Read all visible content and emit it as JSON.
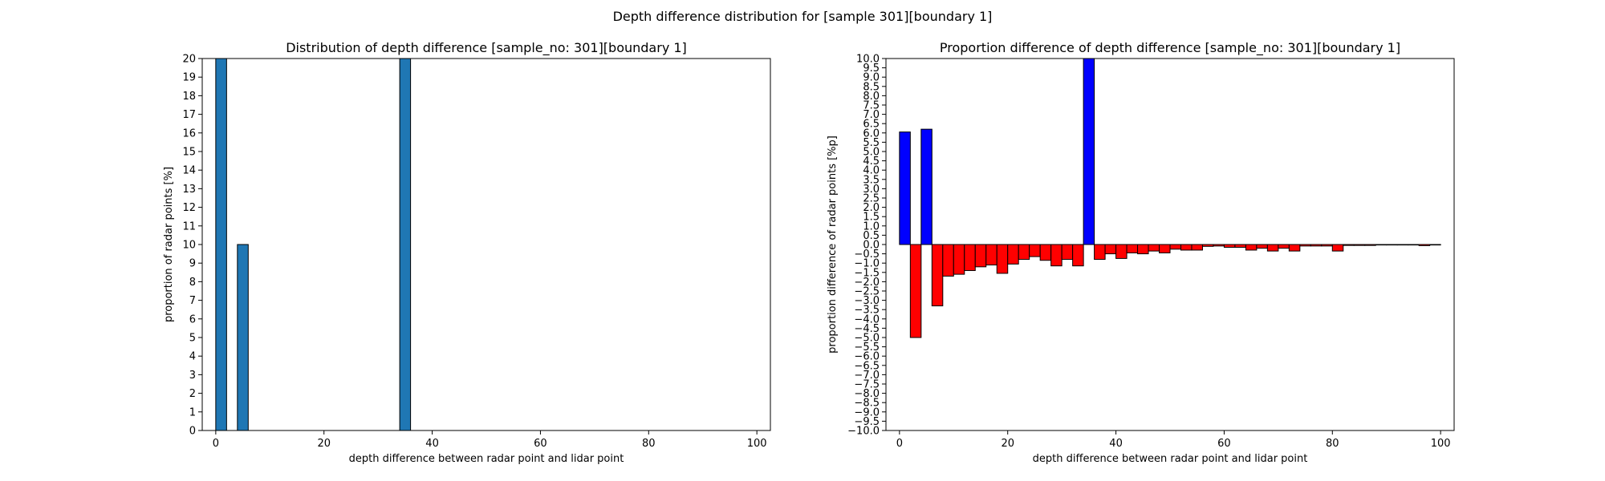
{
  "figure": {
    "suptitle": "Depth difference distribution for [sample 301][boundary 1]"
  },
  "colors": {
    "bar_left": "#1f77b4",
    "positive": "#0000ff",
    "negative": "#ff0000",
    "edge": "#000000"
  },
  "chart_data": [
    {
      "type": "bar",
      "title": "Distribution of depth difference [sample_no: 301][boundary 1]",
      "xlabel": "depth difference between radar point and lidar point",
      "ylabel": "proportion of radar points [%]",
      "xlim": [
        -2.5,
        102.5
      ],
      "ylim": [
        0,
        20
      ],
      "x_ticks": [
        0,
        20,
        40,
        60,
        80,
        100
      ],
      "y_ticks": [
        0,
        1,
        2,
        3,
        4,
        5,
        6,
        7,
        8,
        9,
        10,
        11,
        12,
        13,
        14,
        15,
        16,
        17,
        18,
        19,
        20
      ],
      "bar_width": 2,
      "x": [
        1,
        5,
        35
      ],
      "values": [
        20,
        10,
        20
      ]
    },
    {
      "type": "bar",
      "title": "Proportion difference of depth difference [sample_no: 301][boundary 1]",
      "xlabel": "depth difference between radar point and lidar point",
      "ylabel": "proportion difference of radar points [%p]",
      "xlim": [
        -2.5,
        102.5
      ],
      "ylim": [
        -10,
        10
      ],
      "x_ticks": [
        0,
        20,
        40,
        60,
        80,
        100
      ],
      "y_ticks": [
        -10,
        -9.5,
        -9,
        -8.5,
        -8,
        -7.5,
        -7,
        -6.5,
        -6,
        -5.5,
        -5,
        -4.5,
        -4,
        -3.5,
        -3,
        -2.5,
        -2,
        -1.5,
        -1,
        -0.5,
        0,
        0.5,
        1,
        1.5,
        2,
        2.5,
        3,
        3.5,
        4,
        4.5,
        5,
        5.5,
        6,
        6.5,
        7,
        7.5,
        8,
        8.5,
        9,
        9.5,
        10
      ],
      "bar_width": 2,
      "x": [
        1,
        3,
        5,
        7,
        9,
        11,
        13,
        15,
        17,
        19,
        21,
        23,
        25,
        27,
        29,
        31,
        33,
        35,
        37,
        39,
        41,
        43,
        45,
        47,
        49,
        51,
        53,
        55,
        57,
        59,
        61,
        63,
        65,
        67,
        69,
        71,
        73,
        75,
        77,
        79,
        81,
        83,
        85,
        87,
        89,
        91,
        93,
        95,
        97,
        99
      ],
      "values": [
        6.05,
        -5.0,
        6.2,
        -3.3,
        -1.7,
        -1.6,
        -1.4,
        -1.2,
        -1.1,
        -1.55,
        -1.05,
        -0.8,
        -0.65,
        -0.85,
        -1.15,
        -0.8,
        -1.15,
        10.0,
        -0.8,
        -0.5,
        -0.75,
        -0.45,
        -0.5,
        -0.35,
        -0.45,
        -0.25,
        -0.3,
        -0.3,
        -0.1,
        -0.08,
        -0.15,
        -0.15,
        -0.3,
        -0.2,
        -0.35,
        -0.2,
        -0.35,
        -0.08,
        -0.08,
        -0.08,
        -0.35,
        -0.05,
        -0.05,
        -0.05,
        -0.02,
        -0.02,
        -0.02,
        -0.02,
        -0.06,
        -0.02
      ]
    }
  ]
}
